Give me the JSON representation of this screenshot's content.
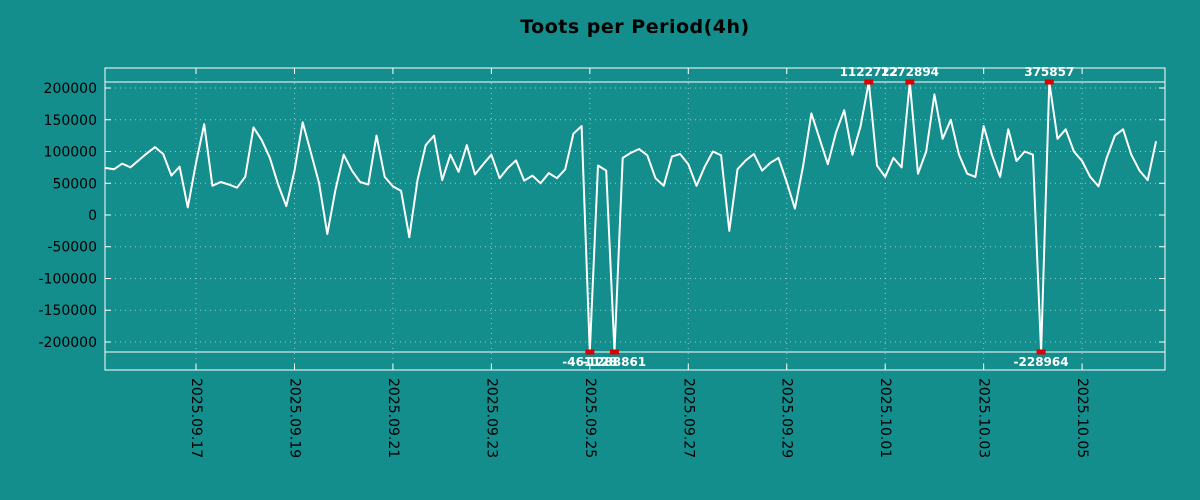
{
  "title": "Toots per Period(4h)",
  "colors": {
    "background": "#148d8d",
    "line": "#ffffff",
    "grid": "rgba(255,255,255,0.55)",
    "border": "#ffffff",
    "marker": "#dd0000",
    "axis_text": "#000000",
    "outlier_text": "#ffffff"
  },
  "chart_data": {
    "type": "line",
    "title": "Toots per Period(4h)",
    "xlabel": "",
    "ylabel": "",
    "x_epoch": "2025.09.15",
    "x_start_days": 0.1667,
    "x_step_days": 0.166667,
    "xlim_days": [
      0.151,
      21.684
    ],
    "ylim": [
      -244100,
      231500
    ],
    "clip_top_value": 209400,
    "clip_bottom_value": -215700,
    "grid": true,
    "legend": "none",
    "y_ticks": [
      {
        "value": -200000,
        "label": "-200000"
      },
      {
        "value": -150000,
        "label": "-150000"
      },
      {
        "value": -100000,
        "label": "-100000"
      },
      {
        "value": -50000,
        "label": "-50000"
      },
      {
        "value": 0,
        "label": "0"
      },
      {
        "value": 50000,
        "label": "50000"
      },
      {
        "value": 100000,
        "label": "100000"
      },
      {
        "value": 150000,
        "label": "150000"
      },
      {
        "value": 200000,
        "label": "200000"
      }
    ],
    "x_ticks": [
      {
        "day": 2,
        "label": "2025.09.17"
      },
      {
        "day": 4,
        "label": "2025.09.19"
      },
      {
        "day": 6,
        "label": "2025.09.21"
      },
      {
        "day": 8,
        "label": "2025.09.23"
      },
      {
        "day": 10,
        "label": "2025.09.25"
      },
      {
        "day": 12,
        "label": "2025.09.27"
      },
      {
        "day": 14,
        "label": "2025.09.29"
      },
      {
        "day": 16,
        "label": "2025.10.01"
      },
      {
        "day": 18,
        "label": "2025.10.03"
      },
      {
        "day": 20,
        "label": "2025.10.05"
      }
    ],
    "outlier_labels_top": [
      "1122722",
      "1272894",
      "375857"
    ],
    "outlier_labels_bottom": [
      "-461128",
      "-1288861",
      "-228964"
    ],
    "series": [
      {
        "name": "toots",
        "values": [
          74000,
          72000,
          81000,
          75000,
          86000,
          97000,
          107000,
          96000,
          62000,
          76000,
          12000,
          82000,
          143000,
          46000,
          52000,
          48000,
          43000,
          60000,
          138000,
          118000,
          90000,
          48000,
          14000,
          70000,
          146000,
          98000,
          50000,
          -30000,
          40000,
          95000,
          70000,
          52000,
          48000,
          125000,
          60000,
          45000,
          38000,
          -35000,
          55000,
          110000,
          125000,
          55000,
          95000,
          68000,
          110000,
          64000,
          80000,
          95000,
          58000,
          74000,
          86000,
          54000,
          62000,
          50000,
          66000,
          58000,
          72000,
          128000,
          140000,
          -461128,
          78000,
          70000,
          -1288861,
          90000,
          98000,
          104000,
          94000,
          58000,
          46000,
          92000,
          96000,
          80000,
          46000,
          76000,
          100000,
          94000,
          -25000,
          72000,
          86000,
          96000,
          70000,
          82000,
          90000,
          52000,
          10000,
          78000,
          160000,
          120000,
          80000,
          130000,
          165000,
          95000,
          140000,
          1122722,
          78000,
          60000,
          90000,
          75000,
          1272894,
          65000,
          100000,
          190000,
          120000,
          150000,
          95000,
          65000,
          60000,
          140000,
          95000,
          60000,
          135000,
          85000,
          100000,
          95000,
          -228964,
          375857,
          120000,
          135000,
          100000,
          85000,
          60000,
          45000,
          90000,
          125000,
          135000,
          95000,
          70000,
          55000,
          115000
        ]
      }
    ]
  }
}
